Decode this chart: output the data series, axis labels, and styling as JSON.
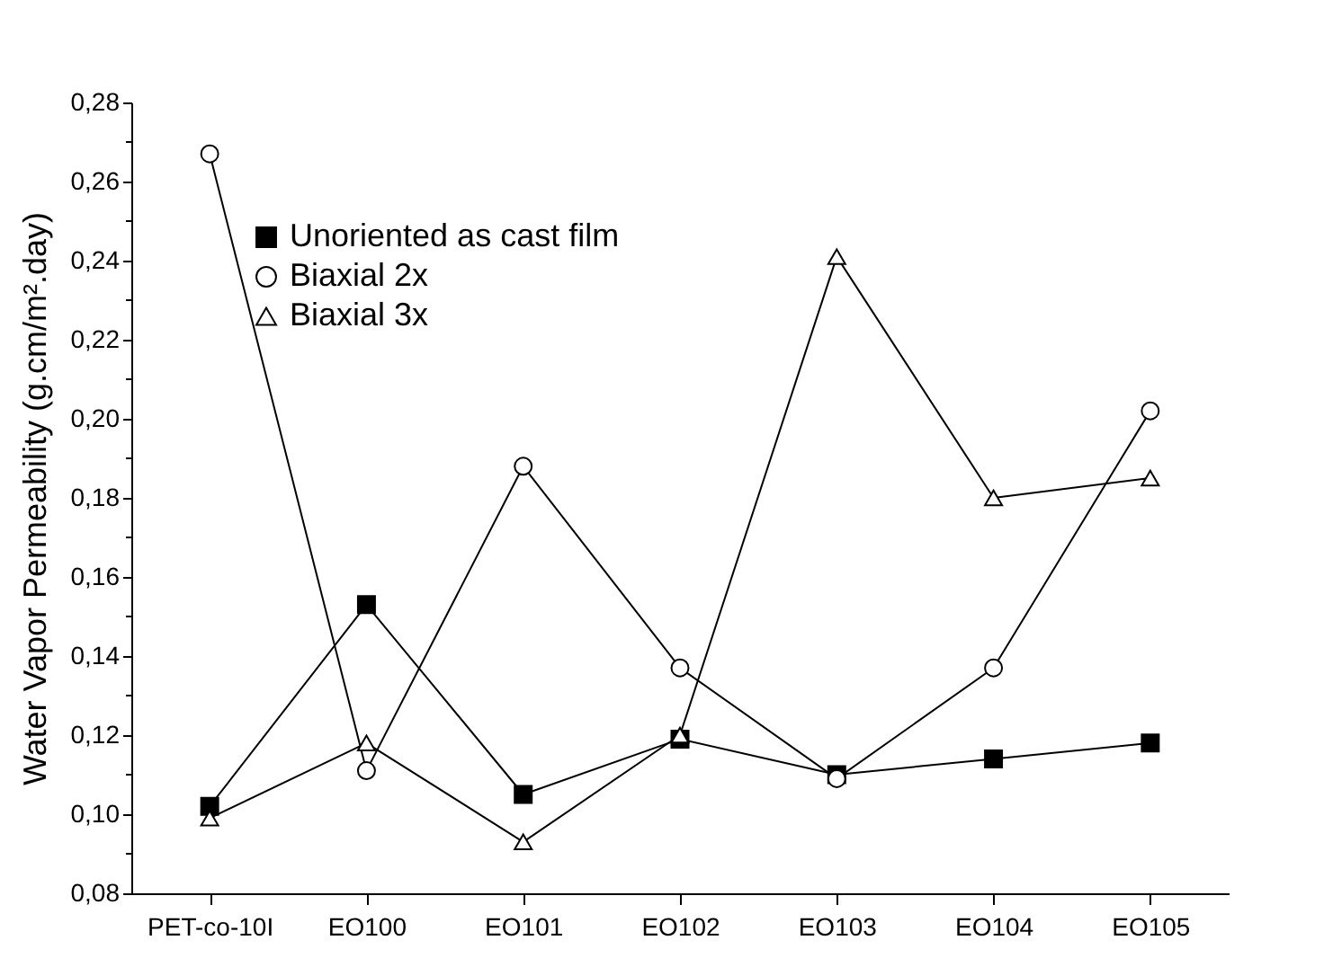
{
  "chart_data": {
    "type": "line",
    "ylabel": "Water Vapor Permeability (g.cm/m².day)",
    "categories": [
      "PET-co-10I",
      "EO100",
      "EO101",
      "EO102",
      "EO103",
      "EO104",
      "EO105"
    ],
    "series": [
      {
        "name": "Unoriented as cast film",
        "color": "#000000",
        "marker": "square",
        "values": [
          0.102,
          0.153,
          0.105,
          0.119,
          0.11,
          0.114,
          0.118
        ]
      },
      {
        "name": "Biaxial 2x",
        "color": "#000000",
        "marker": "circle",
        "values": [
          0.267,
          0.111,
          0.188,
          0.137,
          0.109,
          0.137,
          0.202
        ]
      },
      {
        "name": "Biaxial 3x",
        "color": "#000000",
        "marker": "triangle",
        "values": [
          0.099,
          0.118,
          0.093,
          0.12,
          0.241,
          0.18,
          0.185
        ]
      }
    ],
    "ylim": [
      0.08,
      0.28
    ],
    "yticks": [
      {
        "value": 0.08,
        "label": "0,08"
      },
      {
        "value": 0.09,
        "label": null
      },
      {
        "value": 0.1,
        "label": "0,10"
      },
      {
        "value": 0.11,
        "label": null
      },
      {
        "value": 0.12,
        "label": "0,12"
      },
      {
        "value": 0.13,
        "label": null
      },
      {
        "value": 0.14,
        "label": "0,14"
      },
      {
        "value": 0.15,
        "label": null
      },
      {
        "value": 0.16,
        "label": "0,16"
      },
      {
        "value": 0.17,
        "label": null
      },
      {
        "value": 0.18,
        "label": "0,18"
      },
      {
        "value": 0.19,
        "label": null
      },
      {
        "value": 0.2,
        "label": "0,20"
      },
      {
        "value": 0.21,
        "label": null
      },
      {
        "value": 0.22,
        "label": "0,22"
      },
      {
        "value": 0.23,
        "label": null
      },
      {
        "value": 0.24,
        "label": "0,24"
      },
      {
        "value": 0.25,
        "label": null
      },
      {
        "value": 0.26,
        "label": "0,26"
      },
      {
        "value": 0.27,
        "label": null
      },
      {
        "value": 0.28,
        "label": "0,28"
      }
    ],
    "legend": "top left",
    "grid": false,
    "line_style": "solid"
  }
}
